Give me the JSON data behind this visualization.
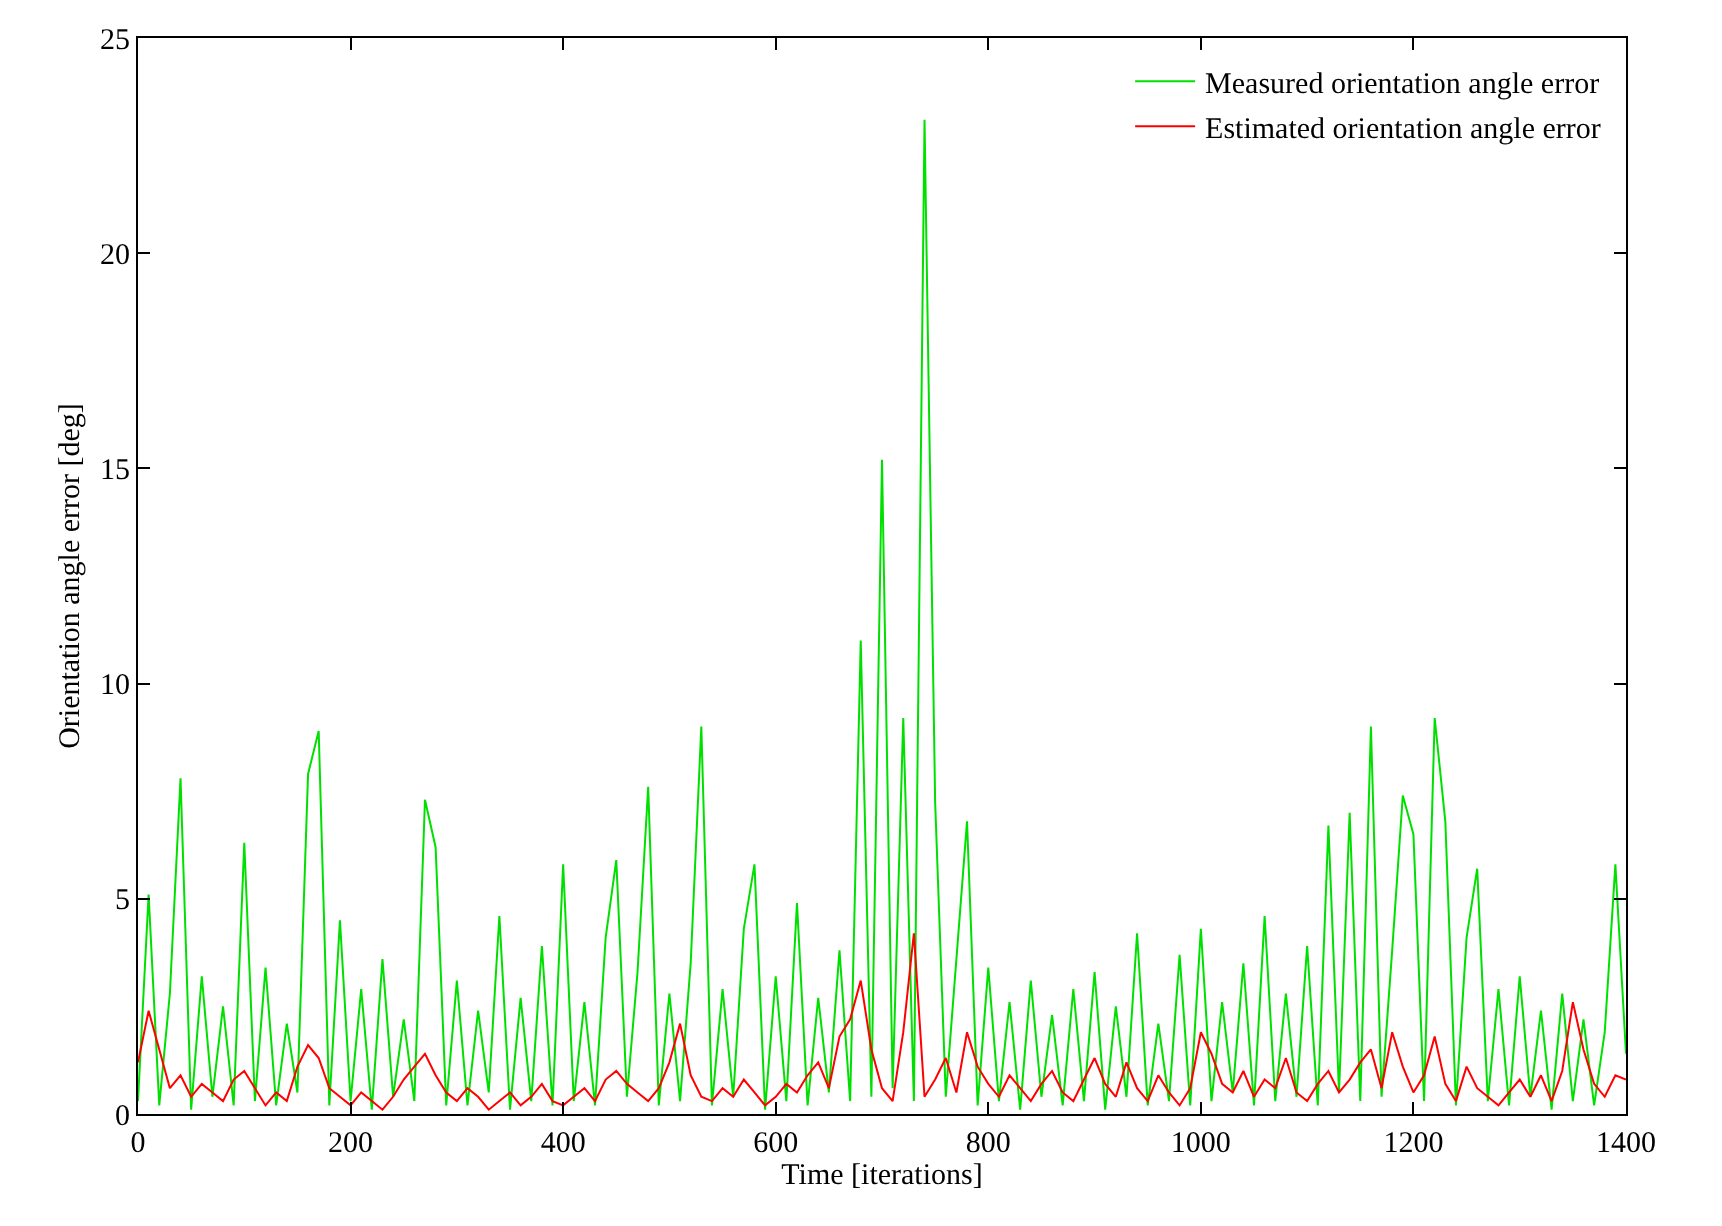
{
  "chart_data": {
    "type": "line",
    "xlabel": "Time [iterations]",
    "ylabel": "Orientation angle error [deg]",
    "xlim": [
      0,
      1400
    ],
    "xticks": [
      0,
      200,
      400,
      600,
      800,
      1000,
      1200,
      1400
    ],
    "ylim": [
      0,
      25
    ],
    "yticks": [
      0,
      5,
      10,
      15,
      20,
      25
    ],
    "legend": "top right",
    "marker": "none",
    "line_style": "solid",
    "x": [
      0,
      10,
      20,
      30,
      40,
      50,
      60,
      70,
      80,
      90,
      100,
      110,
      120,
      130,
      140,
      150,
      160,
      170,
      180,
      190,
      200,
      210,
      220,
      230,
      240,
      250,
      260,
      270,
      280,
      290,
      300,
      310,
      320,
      330,
      340,
      350,
      360,
      370,
      380,
      390,
      400,
      410,
      420,
      430,
      440,
      450,
      460,
      470,
      480,
      490,
      500,
      510,
      520,
      530,
      540,
      550,
      560,
      570,
      580,
      590,
      600,
      610,
      620,
      630,
      640,
      650,
      660,
      670,
      680,
      690,
      700,
      710,
      720,
      730,
      740,
      750,
      760,
      770,
      780,
      790,
      800,
      810,
      820,
      830,
      840,
      850,
      860,
      870,
      880,
      890,
      900,
      910,
      920,
      930,
      940,
      950,
      960,
      970,
      980,
      990,
      1000,
      1010,
      1020,
      1030,
      1040,
      1050,
      1060,
      1070,
      1080,
      1090,
      1100,
      1110,
      1120,
      1130,
      1140,
      1150,
      1160,
      1170,
      1180,
      1190,
      1200,
      1210,
      1220,
      1230,
      1240,
      1250,
      1260,
      1270,
      1280,
      1290,
      1300,
      1310,
      1320,
      1330,
      1340,
      1350,
      1360,
      1370,
      1380,
      1390,
      1400
    ],
    "series": [
      {
        "name": "Measured orientation angle error",
        "color": "#00e000",
        "values": [
          0.3,
          5.1,
          0.2,
          2.8,
          7.8,
          0.1,
          3.2,
          0.4,
          2.5,
          0.2,
          6.3,
          0.3,
          3.4,
          0.2,
          2.1,
          0.5,
          7.9,
          8.9,
          0.2,
          4.5,
          0.3,
          2.9,
          0.1,
          3.6,
          0.4,
          2.2,
          0.3,
          7.3,
          6.2,
          0.2,
          3.1,
          0.2,
          2.4,
          0.5,
          4.6,
          0.1,
          2.7,
          0.3,
          3.9,
          0.2,
          5.8,
          0.3,
          2.6,
          0.2,
          4.1,
          5.9,
          0.4,
          3.3,
          7.6,
          0.2,
          2.8,
          0.3,
          3.5,
          9.0,
          0.2,
          2.9,
          0.4,
          4.3,
          5.8,
          0.1,
          3.2,
          0.3,
          4.9,
          0.2,
          2.7,
          0.5,
          3.8,
          0.3,
          11.0,
          0.4,
          15.2,
          0.6,
          9.2,
          0.3,
          23.1,
          7.25,
          0.4,
          3.6,
          6.8,
          0.2,
          3.4,
          0.3,
          2.6,
          0.1,
          3.1,
          0.4,
          2.3,
          0.2,
          2.9,
          0.3,
          3.3,
          0.1,
          2.5,
          0.4,
          4.2,
          0.2,
          2.1,
          0.3,
          3.7,
          0.2,
          4.3,
          0.3,
          2.6,
          0.5,
          3.5,
          0.2,
          4.6,
          0.3,
          2.8,
          0.4,
          3.9,
          0.2,
          6.7,
          0.5,
          7.0,
          0.3,
          9.0,
          0.4,
          3.8,
          7.4,
          6.5,
          0.3,
          9.2,
          6.8,
          0.2,
          4.1,
          5.7,
          0.3,
          2.9,
          0.2,
          3.2,
          0.4,
          2.4,
          0.1,
          2.8,
          0.3,
          2.2,
          0.2,
          1.9,
          5.8,
          1.4
        ]
      },
      {
        "name": "Estimated orientation angle error",
        "color": "#ff0000",
        "values": [
          1.2,
          2.4,
          1.5,
          0.6,
          0.9,
          0.4,
          0.7,
          0.5,
          0.3,
          0.8,
          1.0,
          0.6,
          0.2,
          0.5,
          0.3,
          1.1,
          1.6,
          1.3,
          0.6,
          0.4,
          0.2,
          0.5,
          0.3,
          0.1,
          0.4,
          0.8,
          1.1,
          1.4,
          0.9,
          0.5,
          0.3,
          0.6,
          0.4,
          0.1,
          0.3,
          0.5,
          0.2,
          0.4,
          0.7,
          0.3,
          0.2,
          0.4,
          0.6,
          0.3,
          0.8,
          1.0,
          0.7,
          0.5,
          0.3,
          0.6,
          1.2,
          2.1,
          0.9,
          0.4,
          0.3,
          0.6,
          0.4,
          0.8,
          0.5,
          0.2,
          0.4,
          0.7,
          0.5,
          0.9,
          1.2,
          0.6,
          1.8,
          2.2,
          3.1,
          1.5,
          0.6,
          0.3,
          1.9,
          4.2,
          0.4,
          0.8,
          1.3,
          0.5,
          1.9,
          1.1,
          0.7,
          0.4,
          0.9,
          0.6,
          0.3,
          0.7,
          1.0,
          0.5,
          0.3,
          0.8,
          1.3,
          0.7,
          0.4,
          1.2,
          0.6,
          0.3,
          0.9,
          0.5,
          0.2,
          0.6,
          1.9,
          1.4,
          0.7,
          0.5,
          1.0,
          0.4,
          0.8,
          0.6,
          1.3,
          0.5,
          0.3,
          0.7,
          1.0,
          0.5,
          0.8,
          1.2,
          1.5,
          0.6,
          1.9,
          1.1,
          0.5,
          0.9,
          1.8,
          0.7,
          0.3,
          1.1,
          0.6,
          0.4,
          0.2,
          0.5,
          0.8,
          0.4,
          0.9,
          0.3,
          1.0,
          2.6,
          1.5,
          0.7,
          0.4,
          0.9,
          0.8
        ]
      }
    ]
  }
}
